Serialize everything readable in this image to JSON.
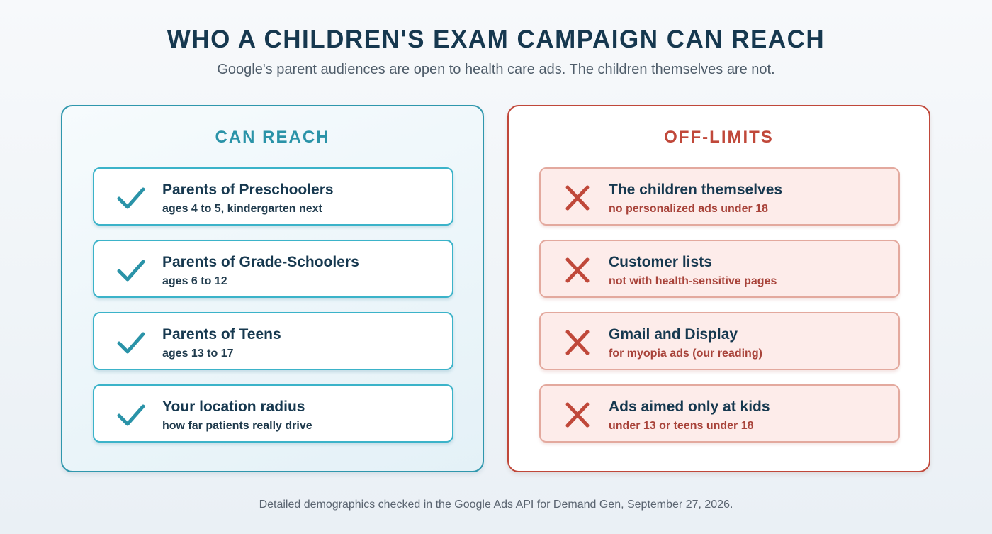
{
  "title": "WHO A CHILDREN'S EXAM CAMPAIGN CAN REACH",
  "subtitle": "Google's parent audiences are open to health care ads. The children themselves are not.",
  "can_reach": {
    "heading": "CAN REACH",
    "icon": "check-icon",
    "accent": "#2f97ad",
    "items": [
      {
        "title": "Parents of Preschoolers",
        "sub": "ages 4 to 5, kindergarten next"
      },
      {
        "title": "Parents of Grade-Schoolers",
        "sub": "ages 6 to 12"
      },
      {
        "title": "Parents of Teens",
        "sub": "ages 13 to 17"
      },
      {
        "title": "Your location radius",
        "sub": "how far patients really drive"
      }
    ]
  },
  "off_limits": {
    "heading": "OFF-LIMITS",
    "icon": "x-icon",
    "accent": "#c0483a",
    "items": [
      {
        "title": "The children themselves",
        "sub": "no personalized ads under 18"
      },
      {
        "title": "Customer lists",
        "sub": "not with health-sensitive pages"
      },
      {
        "title": "Gmail and Display",
        "sub": "for myopia ads (our reading)"
      },
      {
        "title": "Ads aimed only at kids",
        "sub": "under 13 or teens under 18"
      }
    ]
  },
  "footer": "Detailed demographics checked in the Google Ads API for Demand Gen, September 27, 2026."
}
